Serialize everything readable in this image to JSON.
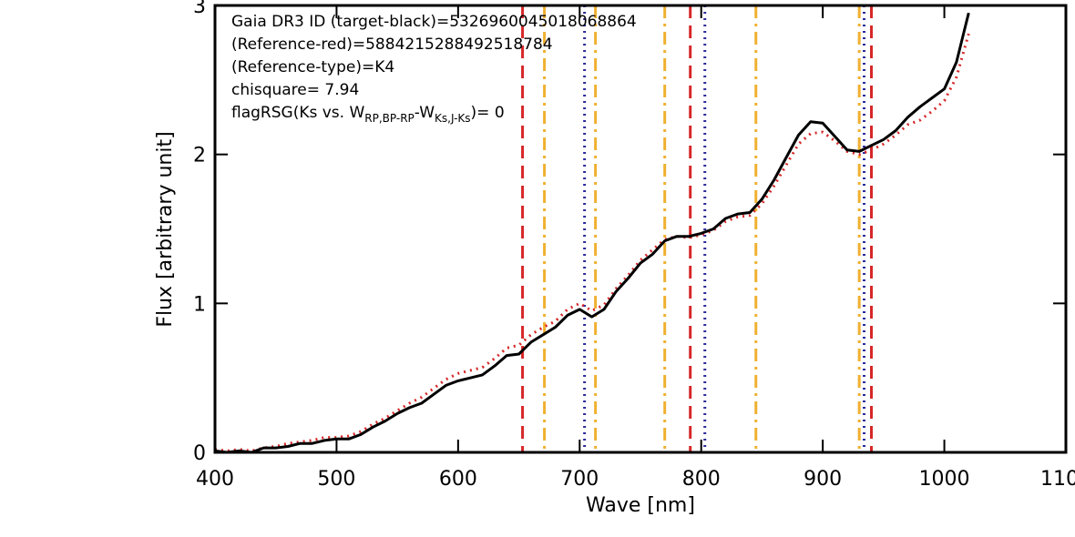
{
  "chart_data": {
    "type": "line",
    "xlabel": "Wave [nm]",
    "ylabel": "Flux [arbitrary unit]",
    "xlim": [
      400,
      1100
    ],
    "xticks": [
      400,
      500,
      600,
      700,
      800,
      900,
      1000,
      1100
    ],
    "ylim": [
      0,
      3
    ],
    "yticks": [
      0,
      1,
      2,
      3
    ],
    "annotations": [
      "Gaia DR3 ID (target-black)=5326960045018068864",
      "(Reference-red)=5884215288492518784",
      "(Reference-type)=K4",
      "chisquare= 7.94"
    ],
    "flag_annotation": [
      "flagRSG(Ks vs. W",
      "RP,BP-RP",
      "-W",
      "Ks,J-Ks",
      ")= 0"
    ],
    "x": [
      400,
      410,
      420,
      430,
      440,
      450,
      460,
      470,
      480,
      490,
      500,
      510,
      520,
      530,
      540,
      550,
      560,
      570,
      580,
      590,
      600,
      610,
      620,
      630,
      640,
      650,
      660,
      670,
      680,
      690,
      700,
      710,
      720,
      730,
      740,
      750,
      760,
      770,
      780,
      790,
      800,
      810,
      820,
      830,
      840,
      850,
      860,
      870,
      880,
      890,
      900,
      910,
      920,
      930,
      940,
      950,
      960,
      970,
      980,
      990,
      1000,
      1010,
      1020
    ],
    "series": [
      {
        "name": "target",
        "color": "#000000",
        "style": "solid",
        "values": [
          0.01,
          0,
          0.01,
          0,
          0.03,
          0.03,
          0.04,
          0.06,
          0.06,
          0.08,
          0.09,
          0.09,
          0.12,
          0.17,
          0.21,
          0.26,
          0.3,
          0.33,
          0.39,
          0.45,
          0.48,
          0.5,
          0.52,
          0.58,
          0.65,
          0.66,
          0.74,
          0.79,
          0.84,
          0.92,
          0.96,
          0.91,
          0.96,
          1.08,
          1.17,
          1.27,
          1.33,
          1.42,
          1.45,
          1.45,
          1.47,
          1.5,
          1.57,
          1.6,
          1.61,
          1.7,
          1.83,
          1.98,
          2.13,
          2.22,
          2.21,
          2.12,
          2.03,
          2.02,
          2.06,
          2.1,
          2.16,
          2.25,
          2.32,
          2.38,
          2.44,
          2.62,
          2.95
        ]
      },
      {
        "name": "reference",
        "color": "#d62728",
        "style": "dotted",
        "values": [
          0.02,
          0.01,
          0.02,
          0.01,
          0.03,
          0.04,
          0.06,
          0.07,
          0.08,
          0.1,
          0.1,
          0.11,
          0.14,
          0.19,
          0.23,
          0.28,
          0.33,
          0.37,
          0.43,
          0.49,
          0.53,
          0.55,
          0.57,
          0.63,
          0.7,
          0.72,
          0.79,
          0.84,
          0.88,
          0.96,
          1.0,
          0.95,
          0.99,
          1.1,
          1.19,
          1.29,
          1.36,
          1.43,
          1.45,
          1.44,
          1.46,
          1.49,
          1.55,
          1.58,
          1.59,
          1.67,
          1.79,
          1.93,
          2.07,
          2.14,
          2.15,
          2.09,
          2.02,
          2.0,
          2.03,
          2.07,
          2.13,
          2.2,
          2.23,
          2.29,
          2.36,
          2.52,
          2.81
        ]
      }
    ],
    "vlines": [
      {
        "x": 653,
        "color": "#d62728",
        "style": "dashed"
      },
      {
        "x": 791,
        "color": "#d62728",
        "style": "dashed"
      },
      {
        "x": 940,
        "color": "#d62728",
        "style": "dashed"
      },
      {
        "x": 671,
        "color": "#f0b030",
        "style": "dashdot"
      },
      {
        "x": 713,
        "color": "#f0b030",
        "style": "dashdot"
      },
      {
        "x": 770,
        "color": "#f0b030",
        "style": "dashdot"
      },
      {
        "x": 845,
        "color": "#f0b030",
        "style": "dashdot"
      },
      {
        "x": 930,
        "color": "#f0b030",
        "style": "dashdot"
      },
      {
        "x": 704,
        "color": "#2a2a9a",
        "style": "dotted"
      },
      {
        "x": 803,
        "color": "#2a2a9a",
        "style": "dotted"
      },
      {
        "x": 934,
        "color": "#2a2a9a",
        "style": "dotted"
      }
    ]
  }
}
